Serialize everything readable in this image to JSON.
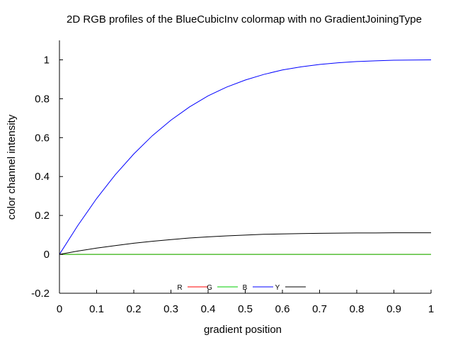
{
  "chart_data": {
    "type": "line",
    "title": "2D RGB profiles of the BlueCubicInv colormap with no GradientJoiningType",
    "xlabel": "gradient position",
    "ylabel": "color channel intensity",
    "xlim": [
      0,
      1
    ],
    "ylim": [
      -0.2,
      1.1
    ],
    "xticks": [
      "0",
      "0.1",
      "0.2",
      "0.3",
      "0.4",
      "0.5",
      "0.6",
      "0.7",
      "0.8",
      "0.9",
      "1"
    ],
    "yticks": [
      "-0.2",
      "0",
      "0.2",
      "0.4",
      "0.6",
      "0.8",
      "1"
    ],
    "legend_position": "bottom-center",
    "series": [
      {
        "name": "R",
        "color": "#ff0000",
        "x": [
          0,
          1
        ],
        "y": [
          0,
          0
        ]
      },
      {
        "name": "G",
        "color": "#00cc00",
        "x": [
          0,
          1
        ],
        "y": [
          0,
          0
        ]
      },
      {
        "name": "B",
        "color": "#0000ff",
        "x": [
          0,
          0.05,
          0.1,
          0.15,
          0.2,
          0.25,
          0.3,
          0.35,
          0.4,
          0.45,
          0.5,
          0.55,
          0.6,
          0.65,
          0.7,
          0.75,
          0.8,
          0.85,
          0.9,
          0.95,
          1
        ],
        "y": [
          0,
          0.15,
          0.287,
          0.409,
          0.516,
          0.61,
          0.69,
          0.758,
          0.815,
          0.86,
          0.896,
          0.925,
          0.948,
          0.964,
          0.976,
          0.985,
          0.991,
          0.995,
          0.998,
          0.999,
          1
        ]
      },
      {
        "name": "Y",
        "color": "#000000",
        "x": [
          0,
          0.05,
          0.1,
          0.15,
          0.2,
          0.25,
          0.3,
          0.35,
          0.4,
          0.45,
          0.5,
          0.55,
          0.6,
          0.65,
          0.7,
          0.75,
          0.8,
          0.85,
          0.9,
          0.95,
          1
        ],
        "y": [
          0,
          0.017,
          0.032,
          0.045,
          0.057,
          0.067,
          0.076,
          0.084,
          0.09,
          0.095,
          0.099,
          0.103,
          0.105,
          0.107,
          0.108,
          0.109,
          0.11,
          0.11,
          0.111,
          0.111,
          0.111
        ]
      }
    ]
  }
}
